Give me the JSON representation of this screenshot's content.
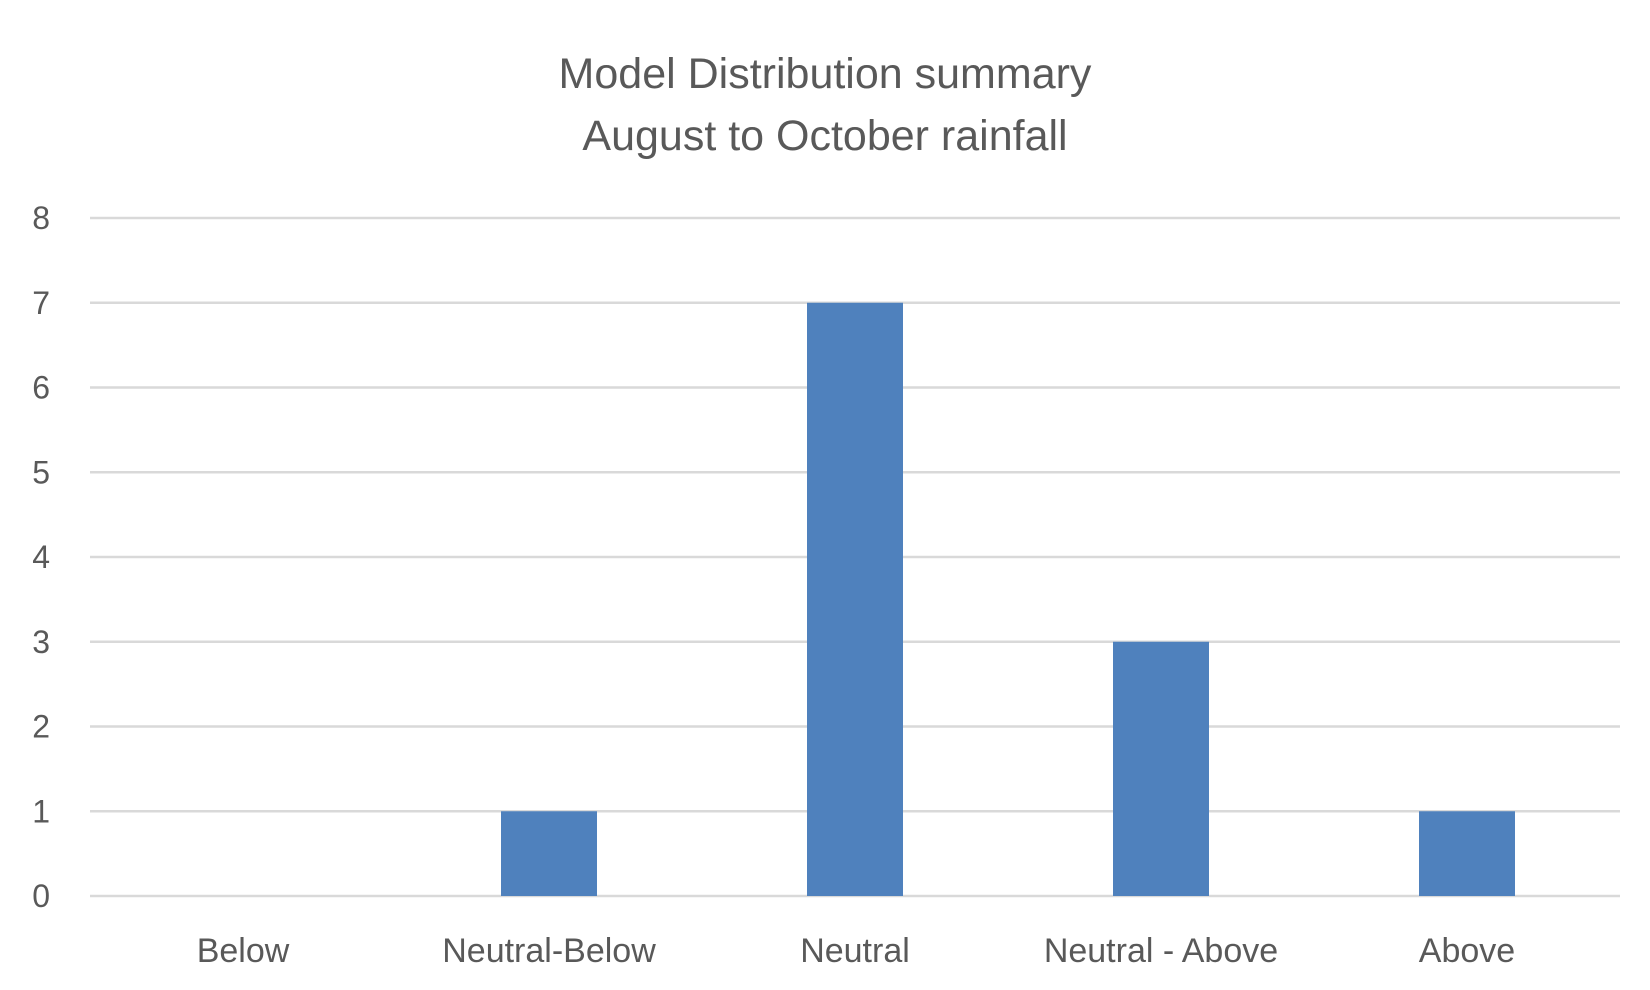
{
  "chart_data": {
    "type": "bar",
    "title": "Model Distribution summary",
    "subtitle": "August to October rainfall",
    "xlabel": "",
    "ylabel": "",
    "categories": [
      "Below",
      "Neutral-Below",
      "Neutral",
      "Neutral - Above",
      "Above"
    ],
    "values": [
      0,
      1,
      7,
      3,
      1
    ],
    "ylim": [
      0,
      8
    ],
    "yticks": [
      0,
      1,
      2,
      3,
      4,
      5,
      6,
      7,
      8
    ],
    "grid": true,
    "legend": "none",
    "colors": {
      "bar": "#4f81bd",
      "grid": "#d9d9d9",
      "text": "#595959"
    }
  }
}
